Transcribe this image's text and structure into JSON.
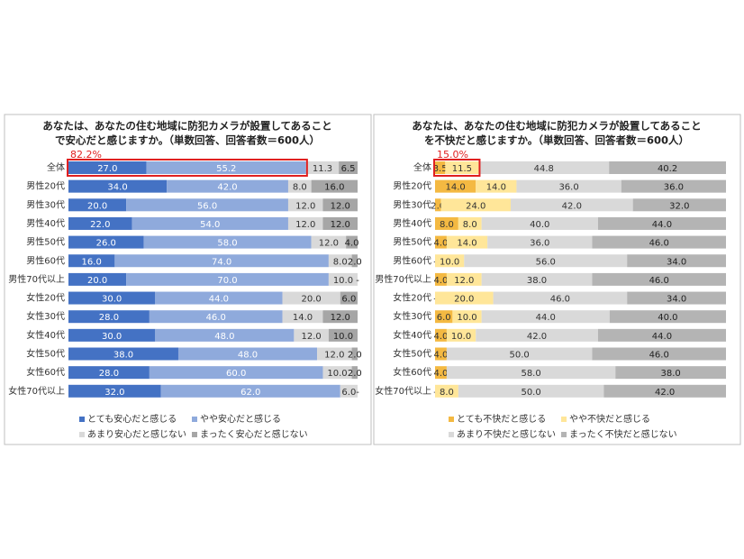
{
  "chart_data": [
    {
      "type": "bar",
      "orientation": "horizontal",
      "stacked": true,
      "title": [
        "あなたは、あなたの住む地域に防犯カメラが設置してあること",
        "で安心だと感じますか。（単数回答、回答者数＝600人）"
      ],
      "annotation": "82.2%",
      "categories": [
        "全体",
        "男性20代",
        "男性30代",
        "男性40代",
        "男性50代",
        "男性60代",
        "男性70代以上",
        "女性20代",
        "女性30代",
        "女性40代",
        "女性50代",
        "女性60代",
        "女性70代以上"
      ],
      "xlim": [
        0,
        100
      ],
      "legend": "bottom",
      "series": [
        {
          "name": "とても安心だと感じる",
          "color": "#4472c4",
          "label_color": "#ffffff",
          "values": [
            27,
            34,
            20,
            22,
            26,
            16,
            20,
            30,
            28,
            30,
            38,
            28,
            32
          ],
          "value_labels": [
            "27.0",
            "34.0",
            "20.0",
            "22.0",
            "26.0",
            "16.0",
            "20.0",
            "30.0",
            "28.0",
            "30.0",
            "38.0",
            "28.0",
            "32.0"
          ]
        },
        {
          "name": "やや安心だと感じる",
          "color": "#8faadc",
          "label_color": "#ffffff",
          "values": [
            55.2,
            42,
            56,
            54,
            58,
            74,
            70,
            44,
            46,
            48,
            48,
            60,
            62
          ],
          "value_labels": [
            "55.2",
            "42.0",
            "56.0",
            "54.0",
            "58.0",
            "74.0",
            "70.0",
            "44.0",
            "46.0",
            "48.0",
            "48.0",
            "60.0",
            "62.0"
          ]
        },
        {
          "name": "あまり安心だと感じない",
          "color": "#d9d9d9",
          "label_color": "#333333",
          "values": [
            11.3,
            8,
            12,
            12,
            12,
            8,
            10,
            20,
            14,
            12,
            12,
            10,
            6
          ],
          "value_labels": [
            "11.3",
            "8.0",
            "12.0",
            "12.0",
            "12.0",
            "8.0",
            "10.0",
            "20.0",
            "14.0",
            "12.0",
            "12.0",
            "10.0",
            "6.0"
          ]
        },
        {
          "name": "まったく安心だと感じない",
          "color": "#a6a6a6",
          "label_color": "#222222",
          "values": [
            6.5,
            16,
            12,
            12,
            4,
            2,
            0,
            6,
            12,
            10,
            2,
            2,
            0
          ],
          "value_labels": [
            "6.5",
            "16.0",
            "12.0",
            "12.0",
            "4.0",
            "2.0",
            "-",
            "6.0",
            "12.0",
            "10.0",
            "2.0",
            "2.0",
            "-"
          ]
        }
      ]
    },
    {
      "type": "bar",
      "orientation": "horizontal",
      "stacked": true,
      "title": [
        "あなたは、あなたの住む地域に防犯カメラが設置してあること",
        "を不快だと感じますか。（単数回答、回答者数＝600人）"
      ],
      "annotation": "15.0%",
      "categories": [
        "全体",
        "男性20代",
        "男性30代",
        "男性40代",
        "男性50代",
        "男性60代",
        "男性70代以上",
        "女性20代",
        "女性30代",
        "女性40代",
        "女性50代",
        "女性60代",
        "女性70代以上"
      ],
      "xlim": [
        0,
        100
      ],
      "legend": "bottom",
      "series": [
        {
          "name": "とても不快だと感じる",
          "color": "#f4b942",
          "label_color": "#333333",
          "values": [
            3.5,
            14,
            2,
            8,
            4,
            0,
            4,
            0,
            6,
            4,
            4,
            4,
            0
          ],
          "value_labels": [
            "3.5",
            "14.0",
            "2.0",
            "8.0",
            "4.0",
            "-",
            "4.0",
            "-",
            "6.0",
            "4.0",
            "4.0",
            "4.0",
            "-"
          ]
        },
        {
          "name": "やや不快だと感じる",
          "color": "#ffe699",
          "label_color": "#333333",
          "values": [
            11.5,
            14,
            24,
            8,
            14,
            10,
            12,
            20,
            10,
            10,
            0,
            0,
            8
          ],
          "value_labels": [
            "11.5",
            "14.0",
            "24.0",
            "8.0",
            "14.0",
            "10.0",
            "12.0",
            "20.0",
            "10.0",
            "10.0",
            null,
            null,
            "8.0"
          ]
        },
        {
          "name": "あまり不快だと感じない",
          "color": "#d9d9d9",
          "label_color": "#333333",
          "values": [
            44.8,
            36,
            42,
            40,
            36,
            56,
            38,
            46,
            44,
            42,
            50,
            58,
            50
          ],
          "value_labels": [
            "44.8",
            "36.0",
            "42.0",
            "40.0",
            "36.0",
            "56.0",
            "38.0",
            "46.0",
            "44.0",
            "42.0",
            "50.0",
            "58.0",
            "50.0"
          ]
        },
        {
          "name": "まったく不快だと感じない",
          "color": "#b4b4b4",
          "label_color": "#222222",
          "values": [
            40.2,
            36,
            32,
            44,
            46,
            34,
            46,
            34,
            40,
            44,
            46,
            38,
            42
          ],
          "value_labels": [
            "40.2",
            "36.0",
            "32.0",
            "44.0",
            "46.0",
            "34.0",
            "46.0",
            "34.0",
            "40.0",
            "44.0",
            "46.0",
            "38.0",
            "42.0"
          ]
        }
      ]
    }
  ]
}
